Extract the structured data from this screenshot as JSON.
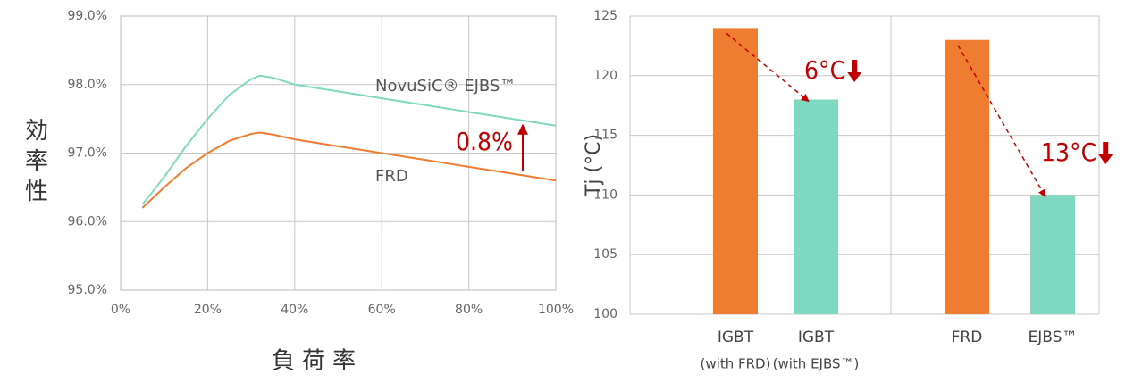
{
  "chart_data": [
    {
      "type": "line",
      "ylabel": "効率性",
      "xlabel": "負荷率",
      "x": [
        5,
        10,
        15,
        20,
        25,
        30,
        32,
        35,
        40,
        50,
        60,
        70,
        80,
        90,
        100
      ],
      "series": [
        {
          "name": "NovuSiC® EJBS™",
          "color": "#7fd8c0",
          "values": [
            96.25,
            96.65,
            97.1,
            97.5,
            97.85,
            98.08,
            98.13,
            98.1,
            98.0,
            97.9,
            97.8,
            97.7,
            97.6,
            97.5,
            97.4
          ]
        },
        {
          "name": "FRD",
          "color": "#ee7d31",
          "values": [
            96.2,
            96.5,
            96.78,
            97.0,
            97.18,
            97.28,
            97.3,
            97.27,
            97.2,
            97.1,
            97.0,
            96.9,
            96.8,
            96.7,
            96.6
          ]
        }
      ],
      "xlim": [
        0,
        100
      ],
      "xticks": [
        {
          "value": 0,
          "label": "0%"
        },
        {
          "value": 20,
          "label": "20%"
        },
        {
          "value": 40,
          "label": "40%"
        },
        {
          "value": 60,
          "label": "60%"
        },
        {
          "value": 80,
          "label": "80%"
        },
        {
          "value": 100,
          "label": "100%"
        }
      ],
      "ylim": [
        95,
        99
      ],
      "yticks": [
        {
          "value": 95,
          "label": "95.0%"
        },
        {
          "value": 96,
          "label": "96.0%"
        },
        {
          "value": 97,
          "label": "97.0%"
        },
        {
          "value": 98,
          "label": "98.0%"
        },
        {
          "value": 99,
          "label": "99.0%"
        }
      ],
      "grid": true,
      "annotation": "0.8%",
      "annotation_color": "#c00000"
    },
    {
      "type": "bar",
      "ylabel": "Tj (°C)",
      "categories": [
        "IGBT",
        "IGBT",
        "FRD",
        "EJBS™"
      ],
      "category_notes": [
        "(with FRD)",
        "(with EJBS™)",
        null,
        null
      ],
      "values": [
        124,
        118,
        123,
        110
      ],
      "colors": [
        "#ee7d31",
        "#7fd8c0",
        "#ee7d31",
        "#7fd8c0"
      ],
      "ylim": [
        100,
        125
      ],
      "yticks": [
        100,
        105,
        110,
        115,
        120,
        125
      ],
      "grid": true,
      "annotations": [
        "6°C",
        "13°C"
      ],
      "annotation_color": "#c00000"
    }
  ]
}
